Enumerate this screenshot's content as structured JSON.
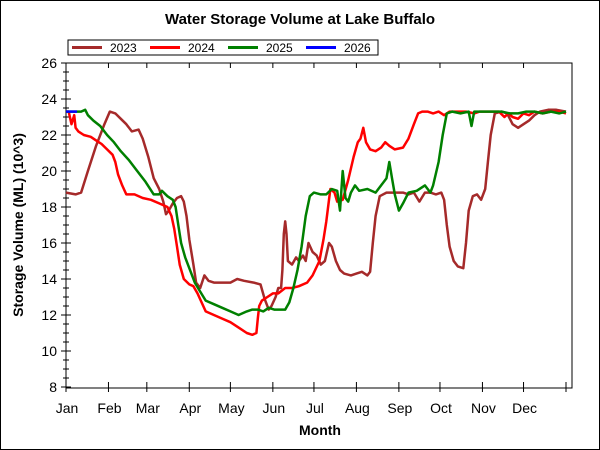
{
  "chart_data": {
    "type": "line",
    "title": "Water Storage Volume at Lake Buffalo",
    "xlabel": "Month",
    "ylabel": "Storage Volume (ML) (10^3)",
    "xlim": [
      0,
      365
    ],
    "ylim": [
      8,
      26
    ],
    "y_ticks": [
      8,
      10,
      12,
      14,
      16,
      18,
      20,
      22,
      24,
      26
    ],
    "x_ticks": [
      {
        "label": "Jan",
        "day": 0
      },
      {
        "label": "Feb",
        "day": 31
      },
      {
        "label": "Mar",
        "day": 59
      },
      {
        "label": "Apr",
        "day": 90
      },
      {
        "label": "May",
        "day": 120
      },
      {
        "label": "Jun",
        "day": 151
      },
      {
        "label": "Jul",
        "day": 181
      },
      {
        "label": "Aug",
        "day": 212
      },
      {
        "label": "Sep",
        "day": 243
      },
      {
        "label": "Oct",
        "day": 273
      },
      {
        "label": "Nov",
        "day": 304
      },
      {
        "label": "Dec",
        "day": 334
      }
    ],
    "x_end_day": 365,
    "grid": false,
    "legend_position": "top-left",
    "series": [
      {
        "name": "2023",
        "color": "#a52a2a",
        "points": [
          [
            0,
            18.8
          ],
          [
            7,
            18.7
          ],
          [
            11,
            18.8
          ],
          [
            16,
            20.0
          ],
          [
            22,
            21.4
          ],
          [
            28,
            22.6
          ],
          [
            32,
            23.3
          ],
          [
            36,
            23.2
          ],
          [
            40,
            22.9
          ],
          [
            44,
            22.6
          ],
          [
            48,
            22.2
          ],
          [
            53,
            22.3
          ],
          [
            56,
            21.8
          ],
          [
            60,
            20.8
          ],
          [
            64,
            19.6
          ],
          [
            68,
            19.0
          ],
          [
            71,
            18.3
          ],
          [
            73,
            17.6
          ],
          [
            75,
            17.8
          ],
          [
            78,
            18.2
          ],
          [
            81,
            18.5
          ],
          [
            84,
            18.6
          ],
          [
            86,
            18.3
          ],
          [
            88,
            17.5
          ],
          [
            90,
            16.2
          ],
          [
            93,
            14.8
          ],
          [
            95,
            13.8
          ],
          [
            98,
            13.5
          ],
          [
            101,
            14.2
          ],
          [
            104,
            13.9
          ],
          [
            108,
            13.8
          ],
          [
            115,
            13.8
          ],
          [
            120,
            13.8
          ],
          [
            125,
            14.0
          ],
          [
            130,
            13.9
          ],
          [
            137,
            13.8
          ],
          [
            142,
            13.7
          ],
          [
            145,
            12.9
          ],
          [
            148,
            12.3
          ],
          [
            150,
            12.5
          ],
          [
            153,
            13.0
          ],
          [
            155,
            13.5
          ],
          [
            157,
            13.5
          ],
          [
            158,
            14.5
          ],
          [
            159,
            16.5
          ],
          [
            160,
            17.2
          ],
          [
            161,
            16.5
          ],
          [
            162,
            15.0
          ],
          [
            165,
            14.8
          ],
          [
            168,
            15.2
          ],
          [
            170,
            15.0
          ],
          [
            173,
            15.3
          ],
          [
            175,
            15.0
          ],
          [
            177,
            16.0
          ],
          [
            180,
            15.5
          ],
          [
            183,
            15.3
          ],
          [
            186,
            14.8
          ],
          [
            189,
            15.0
          ],
          [
            192,
            16.0
          ],
          [
            194,
            15.8
          ],
          [
            197,
            15.0
          ],
          [
            200,
            14.5
          ],
          [
            203,
            14.3
          ],
          [
            208,
            14.2
          ],
          [
            212,
            14.3
          ],
          [
            216,
            14.4
          ],
          [
            220,
            14.2
          ],
          [
            222,
            14.4
          ],
          [
            224,
            16.0
          ],
          [
            226,
            17.5
          ],
          [
            229,
            18.6
          ],
          [
            234,
            18.8
          ],
          [
            240,
            18.8
          ],
          [
            246,
            18.8
          ],
          [
            250,
            18.7
          ],
          [
            254,
            18.8
          ],
          [
            258,
            18.3
          ],
          [
            262,
            18.8
          ],
          [
            266,
            18.8
          ],
          [
            270,
            18.7
          ],
          [
            274,
            18.8
          ],
          [
            276,
            18.4
          ],
          [
            278,
            17.0
          ],
          [
            280,
            15.8
          ],
          [
            283,
            15.0
          ],
          [
            286,
            14.7
          ],
          [
            290,
            14.6
          ],
          [
            292,
            16.0
          ],
          [
            294,
            17.8
          ],
          [
            297,
            18.6
          ],
          [
            300,
            18.7
          ],
          [
            303,
            18.4
          ],
          [
            306,
            19.0
          ],
          [
            308,
            20.5
          ],
          [
            310,
            22.0
          ],
          [
            313,
            23.2
          ],
          [
            318,
            23.3
          ],
          [
            322,
            23.2
          ],
          [
            326,
            22.6
          ],
          [
            330,
            22.4
          ],
          [
            334,
            22.6
          ],
          [
            338,
            22.8
          ],
          [
            342,
            23.1
          ],
          [
            346,
            23.3
          ],
          [
            352,
            23.4
          ],
          [
            358,
            23.4
          ],
          [
            365,
            23.3
          ]
        ]
      },
      {
        "name": "2024",
        "color": "#ff0000",
        "points": [
          [
            0,
            23.3
          ],
          [
            2,
            23.3
          ],
          [
            4,
            22.6
          ],
          [
            6,
            23.1
          ],
          [
            7,
            22.4
          ],
          [
            9,
            22.2
          ],
          [
            13,
            22.0
          ],
          [
            18,
            21.9
          ],
          [
            22,
            21.7
          ],
          [
            26,
            21.5
          ],
          [
            30,
            21.2
          ],
          [
            34,
            20.9
          ],
          [
            36,
            20.5
          ],
          [
            38,
            19.8
          ],
          [
            41,
            19.2
          ],
          [
            44,
            18.7
          ],
          [
            50,
            18.7
          ],
          [
            56,
            18.5
          ],
          [
            62,
            18.4
          ],
          [
            68,
            18.2
          ],
          [
            74,
            18.0
          ],
          [
            77,
            17.5
          ],
          [
            79,
            16.8
          ],
          [
            81,
            15.8
          ],
          [
            83,
            14.8
          ],
          [
            86,
            14.0
          ],
          [
            90,
            13.7
          ],
          [
            93,
            13.6
          ],
          [
            96,
            13.2
          ],
          [
            99,
            12.7
          ],
          [
            102,
            12.2
          ],
          [
            108,
            12.0
          ],
          [
            114,
            11.8
          ],
          [
            120,
            11.6
          ],
          [
            126,
            11.3
          ],
          [
            132,
            11.0
          ],
          [
            136,
            10.9
          ],
          [
            139,
            11.0
          ],
          [
            140,
            11.8
          ],
          [
            141,
            12.5
          ],
          [
            143,
            12.8
          ],
          [
            147,
            13.0
          ],
          [
            151,
            13.2
          ],
          [
            155,
            13.2
          ],
          [
            160,
            13.5
          ],
          [
            165,
            13.5
          ],
          [
            170,
            13.6
          ],
          [
            176,
            13.8
          ],
          [
            180,
            14.2
          ],
          [
            185,
            15.0
          ],
          [
            188,
            16.2
          ],
          [
            190,
            17.2
          ],
          [
            192,
            18.4
          ],
          [
            193,
            19.0
          ],
          [
            196,
            18.8
          ],
          [
            198,
            18.3
          ],
          [
            202,
            18.4
          ],
          [
            206,
            19.5
          ],
          [
            210,
            20.8
          ],
          [
            213,
            21.6
          ],
          [
            215,
            21.8
          ],
          [
            217,
            22.4
          ],
          [
            219,
            21.6
          ],
          [
            222,
            21.2
          ],
          [
            226,
            21.1
          ],
          [
            230,
            21.3
          ],
          [
            233,
            21.6
          ],
          [
            236,
            21.4
          ],
          [
            240,
            21.2
          ],
          [
            246,
            21.3
          ],
          [
            250,
            21.8
          ],
          [
            254,
            22.6
          ],
          [
            257,
            23.2
          ],
          [
            260,
            23.3
          ],
          [
            264,
            23.3
          ],
          [
            268,
            23.2
          ],
          [
            272,
            23.3
          ],
          [
            276,
            23.1
          ],
          [
            280,
            23.3
          ],
          [
            286,
            23.3
          ],
          [
            292,
            23.3
          ],
          [
            298,
            23.2
          ],
          [
            302,
            23.3
          ],
          [
            308,
            23.3
          ],
          [
            312,
            23.3
          ],
          [
            316,
            23.3
          ],
          [
            320,
            23.0
          ],
          [
            323,
            23.2
          ],
          [
            326,
            23.0
          ],
          [
            330,
            22.9
          ],
          [
            334,
            23.2
          ],
          [
            338,
            23.1
          ],
          [
            342,
            23.3
          ],
          [
            348,
            23.2
          ],
          [
            354,
            23.3
          ],
          [
            360,
            23.3
          ],
          [
            365,
            23.2
          ]
        ]
      },
      {
        "name": "2025",
        "color": "#008000",
        "points": [
          [
            0,
            23.3
          ],
          [
            6,
            23.3
          ],
          [
            11,
            23.3
          ],
          [
            14,
            23.4
          ],
          [
            16,
            23.1
          ],
          [
            20,
            22.8
          ],
          [
            25,
            22.5
          ],
          [
            30,
            22.0
          ],
          [
            35,
            21.6
          ],
          [
            40,
            21.1
          ],
          [
            46,
            20.6
          ],
          [
            52,
            20.0
          ],
          [
            58,
            19.4
          ],
          [
            64,
            18.7
          ],
          [
            68,
            18.7
          ],
          [
            70,
            18.9
          ],
          [
            74,
            18.6
          ],
          [
            78,
            18.4
          ],
          [
            80,
            18.0
          ],
          [
            82,
            17.0
          ],
          [
            84,
            16.0
          ],
          [
            87,
            15.2
          ],
          [
            90,
            14.6
          ],
          [
            94,
            13.8
          ],
          [
            98,
            13.3
          ],
          [
            102,
            12.8
          ],
          [
            108,
            12.6
          ],
          [
            114,
            12.4
          ],
          [
            120,
            12.2
          ],
          [
            126,
            12.0
          ],
          [
            132,
            12.2
          ],
          [
            136,
            12.3
          ],
          [
            140,
            12.3
          ],
          [
            144,
            12.2
          ],
          [
            148,
            12.4
          ],
          [
            152,
            12.3
          ],
          [
            157,
            12.3
          ],
          [
            160,
            12.3
          ],
          [
            163,
            12.7
          ],
          [
            166,
            13.5
          ],
          [
            169,
            14.5
          ],
          [
            172,
            15.8
          ],
          [
            175,
            17.5
          ],
          [
            178,
            18.6
          ],
          [
            181,
            18.8
          ],
          [
            186,
            18.7
          ],
          [
            190,
            18.7
          ],
          [
            194,
            19.0
          ],
          [
            198,
            18.9
          ],
          [
            200,
            17.8
          ],
          [
            202,
            20.0
          ],
          [
            204,
            18.5
          ],
          [
            206,
            18.3
          ],
          [
            208,
            18.8
          ],
          [
            211,
            19.2
          ],
          [
            214,
            18.9
          ],
          [
            220,
            19.0
          ],
          [
            226,
            18.8
          ],
          [
            230,
            19.2
          ],
          [
            234,
            19.6
          ],
          [
            236,
            20.5
          ],
          [
            238,
            19.6
          ],
          [
            240,
            18.7
          ],
          [
            243,
            17.8
          ],
          [
            246,
            18.2
          ],
          [
            250,
            18.8
          ],
          [
            256,
            18.9
          ],
          [
            262,
            19.2
          ],
          [
            266,
            18.8
          ],
          [
            268,
            19.2
          ],
          [
            272,
            20.5
          ],
          [
            275,
            22.0
          ],
          [
            278,
            23.2
          ],
          [
            282,
            23.3
          ],
          [
            288,
            23.2
          ],
          [
            294,
            23.3
          ],
          [
            296,
            22.5
          ],
          [
            298,
            23.3
          ],
          [
            306,
            23.3
          ],
          [
            312,
            23.3
          ],
          [
            318,
            23.3
          ],
          [
            324,
            23.2
          ],
          [
            330,
            23.2
          ],
          [
            336,
            23.3
          ],
          [
            342,
            23.3
          ],
          [
            348,
            23.2
          ],
          [
            354,
            23.3
          ],
          [
            360,
            23.2
          ],
          [
            365,
            23.3
          ]
        ]
      },
      {
        "name": "2026",
        "color": "#0000ff",
        "points": [
          [
            0,
            23.3
          ],
          [
            3,
            23.3
          ],
          [
            6,
            23.3
          ],
          [
            8,
            23.3
          ]
        ]
      }
    ]
  }
}
